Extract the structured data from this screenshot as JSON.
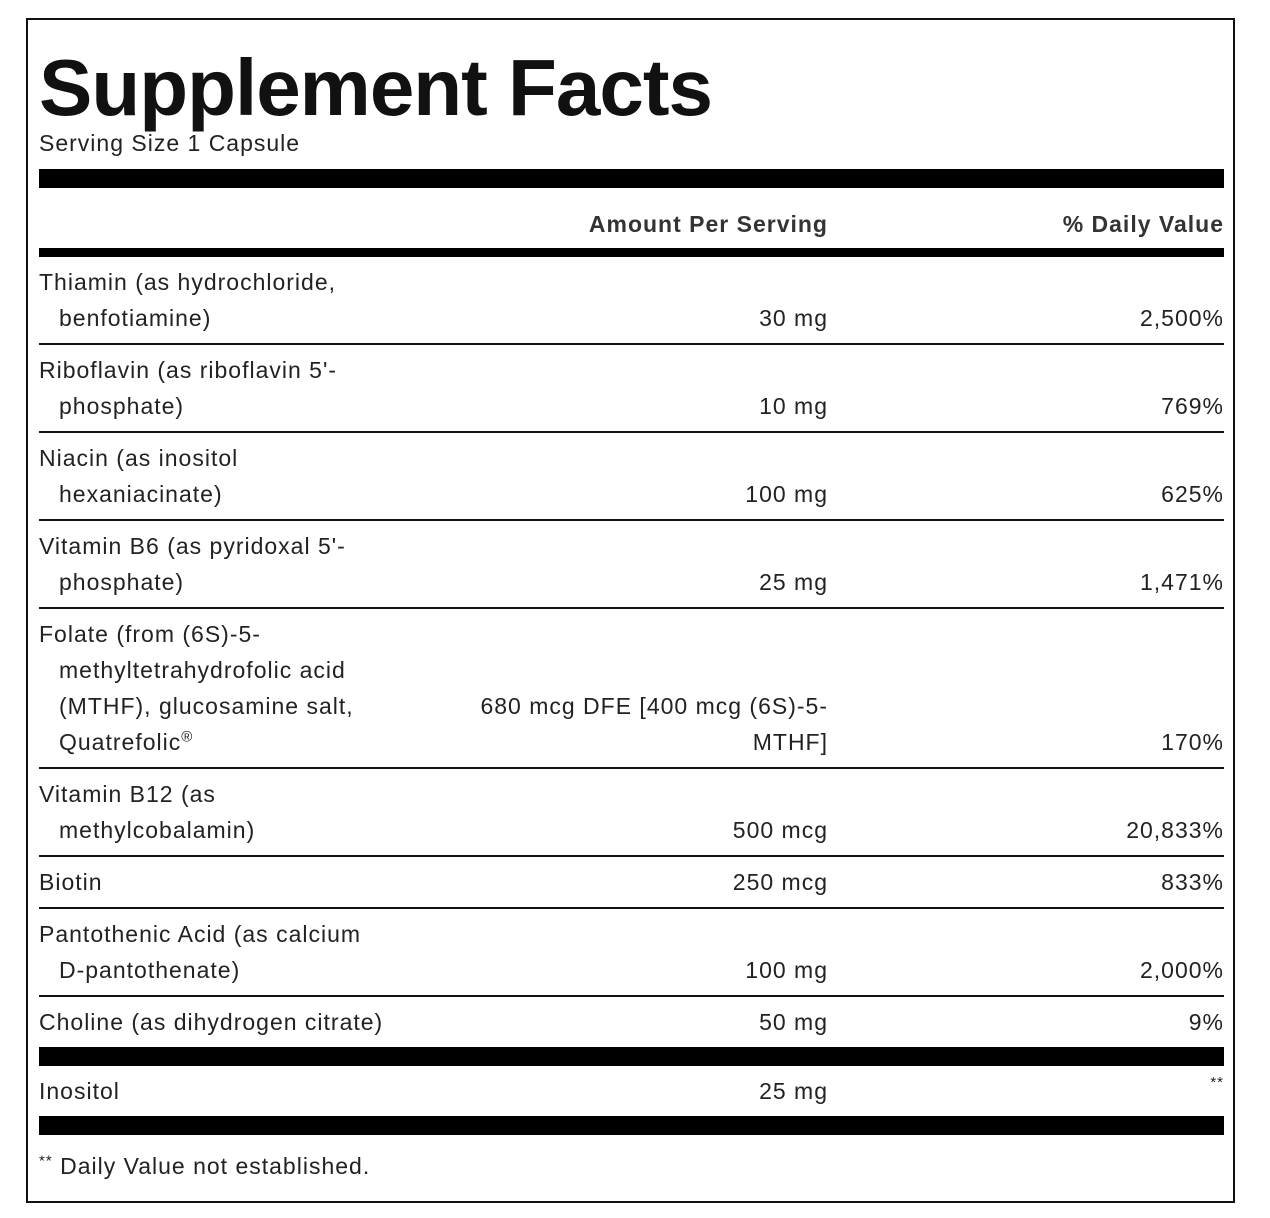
{
  "label": {
    "title": "Supplement Facts",
    "serving_size": "Serving Size 1 Capsule",
    "header": {
      "amount": "Amount Per Serving",
      "dv": "% Daily Value"
    },
    "rows": [
      {
        "name": [
          "Thiamin (as hydrochloride,",
          "benfotiamine)"
        ],
        "amount": [
          "30 mg"
        ],
        "dv": "2,500%"
      },
      {
        "name": [
          "Riboflavin (as riboflavin 5'-",
          "phosphate)"
        ],
        "amount": [
          "10 mg"
        ],
        "dv": "769%"
      },
      {
        "name": [
          "Niacin (as inositol",
          "hexaniacinate)"
        ],
        "amount": [
          "100 mg"
        ],
        "dv": "625%"
      },
      {
        "name": [
          "Vitamin B6 (as pyridoxal 5'-",
          "phosphate)"
        ],
        "amount": [
          "25 mg"
        ],
        "dv": "1,471%"
      },
      {
        "name": [
          "Folate (from (6S)-5-",
          "methyltetrahydrofolic acid",
          "(MTHF), glucosamine salt,",
          "Quatrefolic"
        ],
        "name_sup": "®",
        "amount": [
          "680 mcg DFE [400 mcg (6S)-5-",
          "MTHF]"
        ],
        "dv": "170%"
      },
      {
        "name": [
          "Vitamin B12 (as",
          "methylcobalamin)"
        ],
        "amount": [
          "500 mcg"
        ],
        "dv": "20,833%"
      },
      {
        "name": [
          "Biotin"
        ],
        "amount": [
          "250 mcg"
        ],
        "dv": "833%"
      },
      {
        "name": [
          "Pantothenic Acid (as calcium",
          "D-pantothenate)"
        ],
        "amount": [
          "100 mg"
        ],
        "dv": "2,000%"
      },
      {
        "name": [
          "Choline (as dihydrogen citrate)"
        ],
        "amount": [
          "50 mg"
        ],
        "dv": "9%"
      }
    ],
    "extra_rows": [
      {
        "name": [
          "Inositol"
        ],
        "amount": [
          "25 mg"
        ],
        "dv_note": "**"
      }
    ],
    "footnote": {
      "mark": "**",
      "text": " Daily Value not established."
    }
  }
}
